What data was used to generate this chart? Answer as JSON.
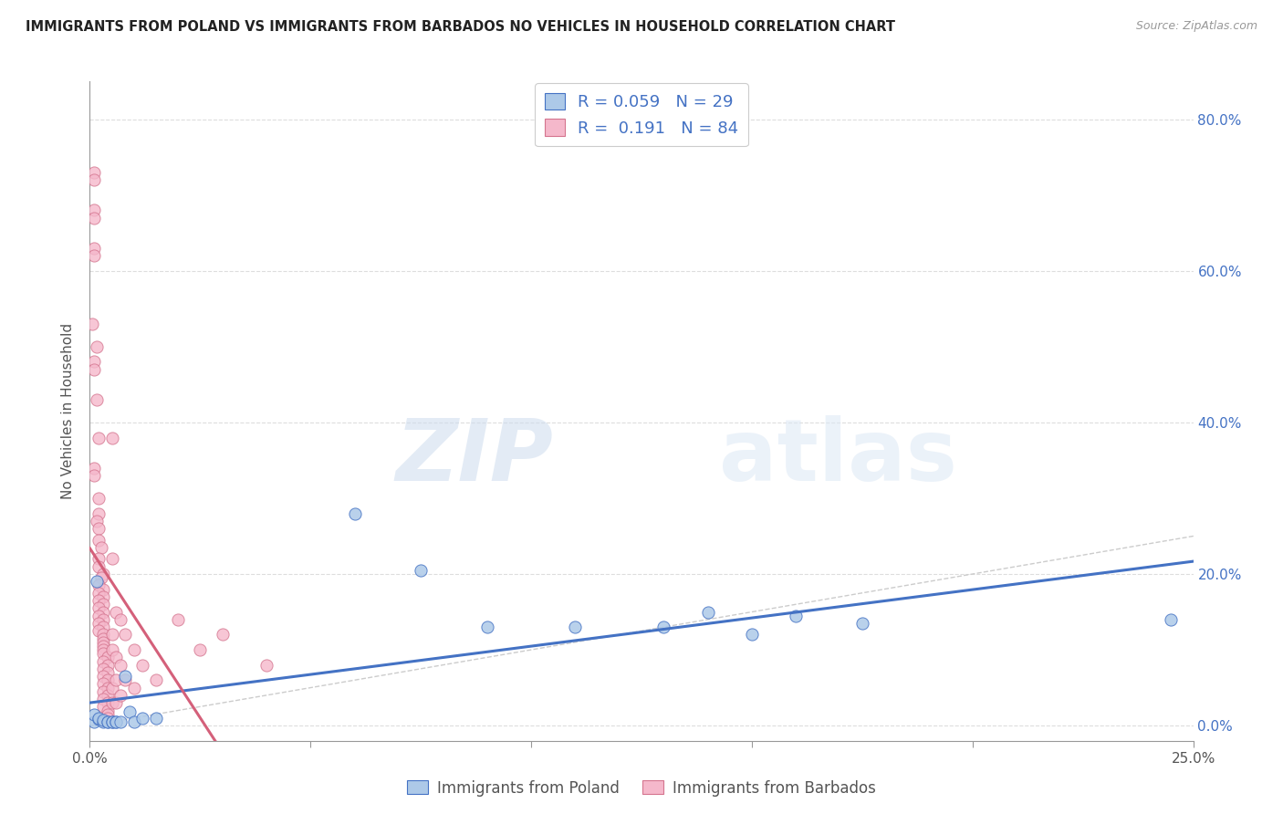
{
  "title": "IMMIGRANTS FROM POLAND VS IMMIGRANTS FROM BARBADOS NO VEHICLES IN HOUSEHOLD CORRELATION CHART",
  "source": "Source: ZipAtlas.com",
  "ylabel": "No Vehicles in Household",
  "xlim": [
    0.0,
    0.25
  ],
  "ylim": [
    -0.02,
    0.85
  ],
  "xticks": [
    0.0,
    0.05,
    0.1,
    0.15,
    0.2,
    0.25
  ],
  "xtick_labels": [
    "0.0%",
    "",
    "",
    "",
    "",
    "25.0%"
  ],
  "yticks_right": [
    0.0,
    0.2,
    0.4,
    0.6,
    0.8
  ],
  "poland_color": "#adc9e8",
  "barbados_color": "#f5b8cb",
  "poland_edge_color": "#4472c4",
  "barbados_edge_color": "#d4748e",
  "poland_line_color": "#4472c4",
  "barbados_line_color": "#d4607a",
  "diagonal_color": "#cccccc",
  "poland_R": 0.059,
  "poland_N": 29,
  "barbados_R": 0.191,
  "barbados_N": 84,
  "watermark_zip": "ZIP",
  "watermark_atlas": "atlas",
  "poland_scatter": [
    [
      0.001,
      0.005
    ],
    [
      0.001,
      0.015
    ],
    [
      0.0015,
      0.19
    ],
    [
      0.002,
      0.008
    ],
    [
      0.002,
      0.01
    ],
    [
      0.003,
      0.005
    ],
    [
      0.003,
      0.007
    ],
    [
      0.004,
      0.005
    ],
    [
      0.004,
      0.005
    ],
    [
      0.005,
      0.005
    ],
    [
      0.005,
      0.005
    ],
    [
      0.006,
      0.005
    ],
    [
      0.006,
      0.005
    ],
    [
      0.007,
      0.005
    ],
    [
      0.008,
      0.065
    ],
    [
      0.009,
      0.018
    ],
    [
      0.01,
      0.005
    ],
    [
      0.012,
      0.01
    ],
    [
      0.015,
      0.01
    ],
    [
      0.06,
      0.28
    ],
    [
      0.075,
      0.205
    ],
    [
      0.09,
      0.13
    ],
    [
      0.11,
      0.13
    ],
    [
      0.13,
      0.13
    ],
    [
      0.14,
      0.15
    ],
    [
      0.15,
      0.12
    ],
    [
      0.16,
      0.145
    ],
    [
      0.175,
      0.135
    ],
    [
      0.245,
      0.14
    ]
  ],
  "barbados_scatter": [
    [
      0.0005,
      0.53
    ],
    [
      0.001,
      0.73
    ],
    [
      0.001,
      0.72
    ],
    [
      0.001,
      0.68
    ],
    [
      0.001,
      0.67
    ],
    [
      0.001,
      0.63
    ],
    [
      0.001,
      0.62
    ],
    [
      0.0015,
      0.5
    ],
    [
      0.001,
      0.48
    ],
    [
      0.001,
      0.47
    ],
    [
      0.0015,
      0.43
    ],
    [
      0.002,
      0.38
    ],
    [
      0.001,
      0.34
    ],
    [
      0.001,
      0.33
    ],
    [
      0.002,
      0.3
    ],
    [
      0.002,
      0.28
    ],
    [
      0.0015,
      0.27
    ],
    [
      0.002,
      0.26
    ],
    [
      0.002,
      0.245
    ],
    [
      0.0025,
      0.235
    ],
    [
      0.002,
      0.22
    ],
    [
      0.002,
      0.21
    ],
    [
      0.003,
      0.2
    ],
    [
      0.0025,
      0.195
    ],
    [
      0.002,
      0.185
    ],
    [
      0.003,
      0.18
    ],
    [
      0.002,
      0.175
    ],
    [
      0.003,
      0.17
    ],
    [
      0.002,
      0.165
    ],
    [
      0.003,
      0.16
    ],
    [
      0.002,
      0.155
    ],
    [
      0.003,
      0.15
    ],
    [
      0.002,
      0.145
    ],
    [
      0.003,
      0.14
    ],
    [
      0.002,
      0.135
    ],
    [
      0.003,
      0.13
    ],
    [
      0.002,
      0.125
    ],
    [
      0.003,
      0.12
    ],
    [
      0.003,
      0.115
    ],
    [
      0.003,
      0.11
    ],
    [
      0.003,
      0.105
    ],
    [
      0.003,
      0.1
    ],
    [
      0.003,
      0.095
    ],
    [
      0.004,
      0.09
    ],
    [
      0.003,
      0.085
    ],
    [
      0.004,
      0.08
    ],
    [
      0.003,
      0.075
    ],
    [
      0.004,
      0.07
    ],
    [
      0.003,
      0.065
    ],
    [
      0.004,
      0.06
    ],
    [
      0.003,
      0.055
    ],
    [
      0.004,
      0.05
    ],
    [
      0.003,
      0.045
    ],
    [
      0.004,
      0.04
    ],
    [
      0.003,
      0.035
    ],
    [
      0.004,
      0.03
    ],
    [
      0.003,
      0.025
    ],
    [
      0.004,
      0.02
    ],
    [
      0.004,
      0.015
    ],
    [
      0.004,
      0.01
    ],
    [
      0.005,
      0.38
    ],
    [
      0.005,
      0.22
    ],
    [
      0.005,
      0.12
    ],
    [
      0.005,
      0.1
    ],
    [
      0.005,
      0.05
    ],
    [
      0.005,
      0.03
    ],
    [
      0.006,
      0.15
    ],
    [
      0.006,
      0.09
    ],
    [
      0.006,
      0.06
    ],
    [
      0.006,
      0.03
    ],
    [
      0.007,
      0.14
    ],
    [
      0.007,
      0.08
    ],
    [
      0.007,
      0.04
    ],
    [
      0.008,
      0.12
    ],
    [
      0.008,
      0.06
    ],
    [
      0.01,
      0.1
    ],
    [
      0.01,
      0.05
    ],
    [
      0.012,
      0.08
    ],
    [
      0.015,
      0.06
    ],
    [
      0.02,
      0.14
    ],
    [
      0.025,
      0.1
    ],
    [
      0.03,
      0.12
    ],
    [
      0.04,
      0.08
    ]
  ]
}
